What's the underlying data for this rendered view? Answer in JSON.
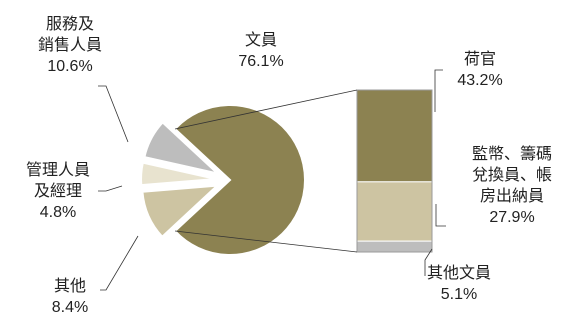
{
  "chart_data": {
    "type": "pie",
    "title": "",
    "pie": {
      "slices": [
        {
          "label_lines": [
            "文員"
          ],
          "value": 76.1,
          "value_text": "76.1%",
          "color": "#8c8251"
        },
        {
          "label_lines": [
            "服務及",
            "銷售人員"
          ],
          "value": 10.6,
          "value_text": "10.6%",
          "color": "#cdc4a2"
        },
        {
          "label_lines": [
            "管理人員",
            "及經理"
          ],
          "value": 4.8,
          "value_text": "4.8%",
          "color": "#e8e3cf"
        },
        {
          "label_lines": [
            "其他"
          ],
          "value": 8.4,
          "value_text": "8.4%",
          "color": "#bdbdbd"
        }
      ]
    },
    "breakdown_of": "文員",
    "bar": {
      "segments": [
        {
          "label_lines": [
            "荷官"
          ],
          "value": 43.2,
          "value_text": "43.2%",
          "color": "#8c8251"
        },
        {
          "label_lines": [
            "監幣、籌碼",
            "兌換員、帳",
            "房出納員"
          ],
          "value": 27.9,
          "value_text": "27.9%",
          "color": "#cdc4a2"
        },
        {
          "label_lines": [
            "其他文員"
          ],
          "value": 5.1,
          "value_text": "5.1%",
          "color": "#bdbdbd"
        }
      ]
    },
    "connector_color": "#333333",
    "outline_color": "#ffffff"
  }
}
